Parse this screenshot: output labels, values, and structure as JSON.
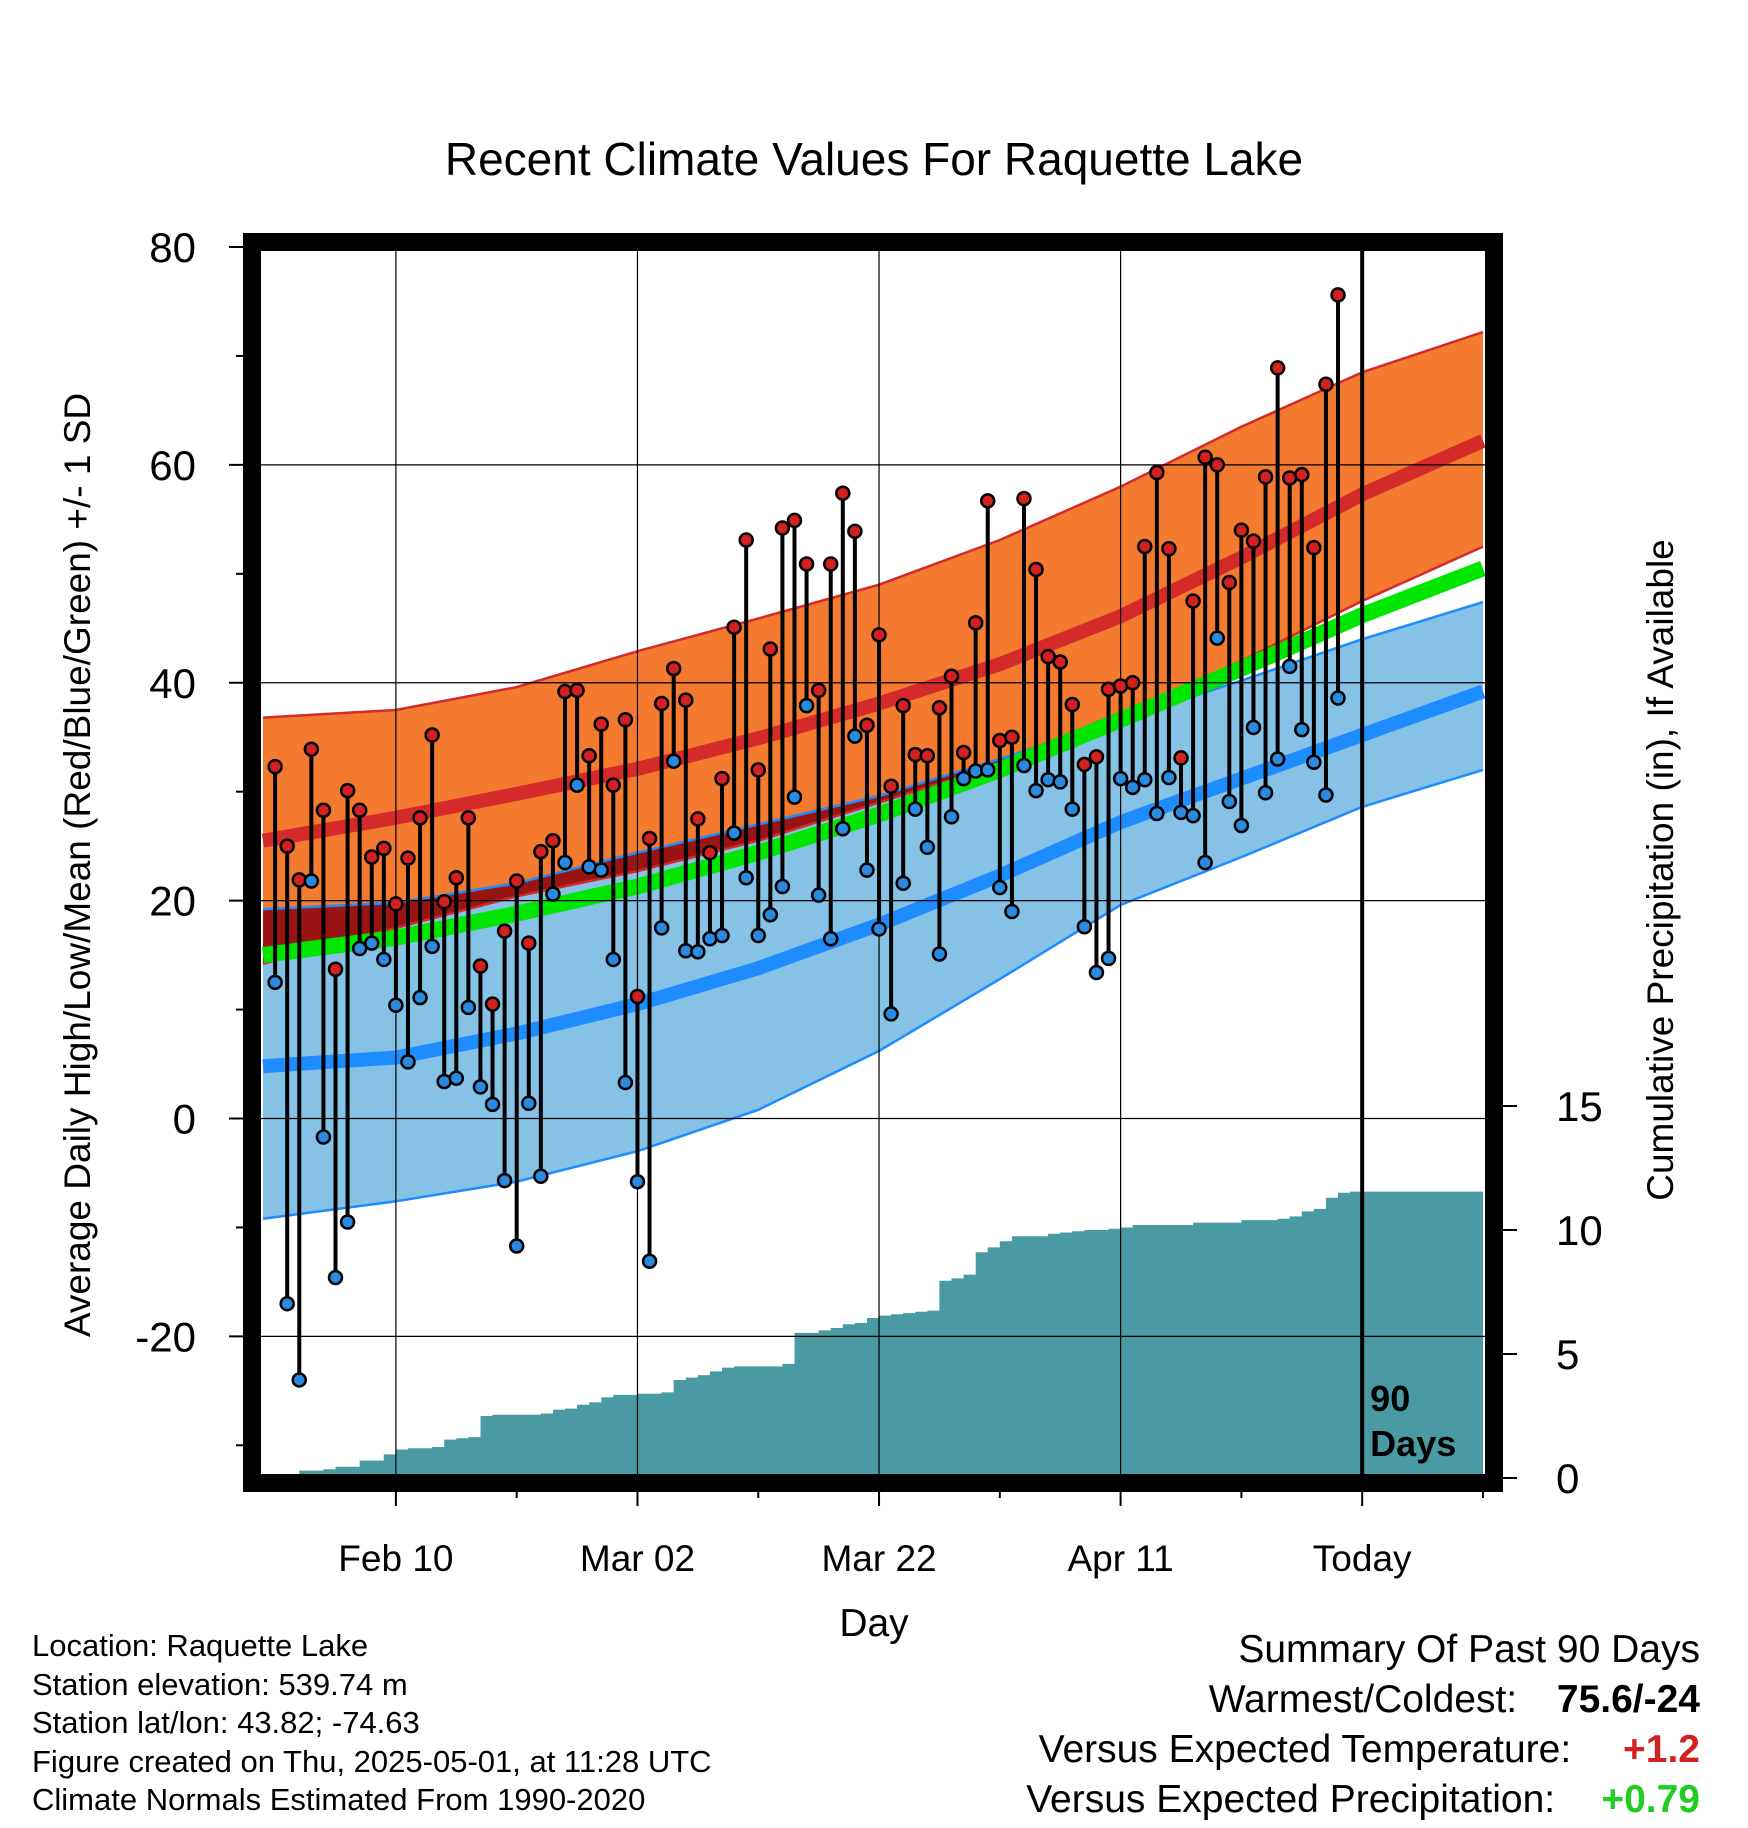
{
  "chart_data": {
    "type": "line",
    "title": "Recent Climate Values For Raquette Lake",
    "xlabel": "Day",
    "ylabel": "Average Daily High/Low/Mean (Red/Blue/Green) +/- 1 SD",
    "y2label": "Cumulative Precipitation (in), If Available",
    "xlim": [
      -11.5,
      90.5
    ],
    "ylim": [
      -33,
      80
    ],
    "y2lim": [
      0,
      20
    ],
    "x_ticks": [
      {
        "x": 0,
        "label": "Feb 10"
      },
      {
        "x": 20,
        "label": "Mar 02"
      },
      {
        "x": 40,
        "label": "Mar 22"
      },
      {
        "x": 60,
        "label": "Apr 11"
      },
      {
        "x": 80,
        "label": "Today"
      }
    ],
    "y_ticks": [
      80,
      60,
      40,
      20,
      0,
      -20
    ],
    "y_tick_labels": [
      "80",
      "60",
      "40",
      "20",
      "0",
      "-20"
    ],
    "y2_ticks": [
      15,
      10,
      5,
      0
    ],
    "y2_tick_labels": [
      "15",
      "10",
      "5",
      "0"
    ],
    "today_x": 80,
    "today_label": "90 Days",
    "grid": true,
    "colors": {
      "high_band": "#f37a2e",
      "high_mean": "#d42a2a",
      "overlap_band": "#9b1414",
      "low_band": "#86c1e6",
      "low_mean": "#1d8cff",
      "mean_line": "#00e600",
      "precip": "#4a9aa4",
      "high_point": "#d32020",
      "low_point": "#2a8ae0",
      "warm_value": "#d42020",
      "precip_value": "#22cc22"
    },
    "normal_high_mean": {
      "x": [
        -11,
        0,
        10,
        20,
        30,
        40,
        50,
        60,
        70,
        80,
        90
      ],
      "values": [
        25.5,
        27.6,
        29.8,
        32.1,
        34.9,
        38.1,
        41.7,
        46.1,
        51.5,
        57.3,
        62.2
      ]
    },
    "normal_high_upper": {
      "x": [
        -11,
        0,
        10,
        20,
        30,
        40,
        50,
        60,
        70,
        80,
        90
      ],
      "values": [
        36.8,
        37.5,
        39.6,
        42.9,
        45.9,
        49.0,
        53.1,
        58.0,
        63.5,
        68.5,
        72.2
      ]
    },
    "normal_high_lower": {
      "x": [
        -11,
        0,
        10,
        20,
        30,
        40,
        50,
        60,
        70,
        80,
        90
      ],
      "values": [
        14.2,
        17.5,
        20.4,
        22.7,
        25.5,
        29.0,
        32.5,
        37.0,
        42.0,
        47.5,
        52.5
      ]
    },
    "normal_low_mean": {
      "x": [
        -11,
        0,
        10,
        20,
        30,
        40,
        50,
        60,
        70,
        80,
        90
      ],
      "values": [
        4.8,
        5.6,
        7.8,
        10.5,
        13.8,
        17.8,
        22.3,
        27.2,
        31.2,
        35.2,
        39.2
      ]
    },
    "normal_low_upper": {
      "x": [
        -11,
        0,
        10,
        20,
        30,
        40,
        50,
        60,
        70,
        80,
        90
      ],
      "values": [
        19.2,
        19.8,
        21.6,
        24.4,
        27.0,
        29.6,
        33.0,
        36.6,
        40.2,
        44.0,
        47.4
      ]
    },
    "normal_low_lower": {
      "x": [
        -11,
        0,
        10,
        20,
        30,
        40,
        50,
        60,
        70,
        80,
        90
      ],
      "values": [
        -9.2,
        -7.6,
        -5.8,
        -3.0,
        0.8,
        6.2,
        12.8,
        19.6,
        24.0,
        28.6,
        32.0
      ]
    },
    "normal_mean": {
      "x": [
        -11,
        0,
        10,
        20,
        30,
        40,
        50,
        60,
        70,
        80,
        90
      ],
      "values": [
        15.0,
        16.6,
        18.8,
        21.3,
        24.4,
        27.9,
        32.0,
        36.6,
        41.3,
        46.2,
        50.5
      ]
    },
    "daily_x": [
      -10,
      -9,
      -8,
      -7,
      -6,
      -5,
      -4,
      -3,
      -2,
      -1,
      0,
      1,
      2,
      3,
      4,
      5,
      6,
      7,
      8,
      9,
      10,
      11,
      12,
      13,
      14,
      15,
      16,
      17,
      18,
      19,
      20,
      21,
      22,
      23,
      24,
      25,
      26,
      27,
      28,
      29,
      30,
      31,
      32,
      33,
      34,
      35,
      36,
      37,
      38,
      39,
      40,
      41,
      42,
      43,
      44,
      45,
      46,
      47,
      48,
      49,
      50,
      51,
      52,
      53,
      54,
      55,
      56,
      57,
      58,
      59,
      60,
      61,
      62,
      63,
      64,
      65,
      66,
      67,
      68,
      69,
      70,
      71,
      72,
      73,
      74,
      75,
      76,
      77,
      78
    ],
    "daily_high": [
      32.3,
      25.0,
      21.9,
      33.9,
      28.3,
      13.7,
      30.1,
      28.3,
      24.0,
      24.8,
      19.7,
      23.9,
      27.6,
      35.2,
      19.9,
      22.1,
      27.6,
      14.0,
      10.5,
      17.2,
      21.8,
      16.1,
      24.5,
      25.5,
      39.2,
      39.3,
      33.3,
      36.2,
      30.6,
      36.6,
      11.2,
      25.7,
      38.1,
      41.3,
      38.4,
      27.5,
      24.4,
      31.2,
      45.1,
      53.1,
      32.0,
      43.1,
      54.2,
      54.9,
      50.9,
      39.3,
      50.9,
      57.4,
      53.9,
      36.1,
      44.4,
      30.5,
      37.9,
      33.4,
      33.3,
      37.7,
      40.6,
      33.6,
      45.5,
      56.7,
      34.7,
      35.0,
      56.9,
      50.4,
      42.4,
      41.9,
      38.0,
      32.5,
      33.2,
      39.4,
      39.7,
      40.0,
      52.5,
      59.3,
      52.3,
      33.1,
      47.5,
      60.7,
      60.0,
      49.2,
      54.0,
      53.0,
      58.9,
      68.9,
      58.8,
      59.1,
      52.4,
      67.4,
      75.6
    ],
    "daily_low": [
      12.5,
      -17.0,
      -24.0,
      21.8,
      -1.7,
      -14.6,
      -9.5,
      15.6,
      16.1,
      14.6,
      10.4,
      5.2,
      11.1,
      15.8,
      3.4,
      3.7,
      10.2,
      2.9,
      1.3,
      -5.7,
      -11.7,
      1.4,
      -5.3,
      20.6,
      23.5,
      30.6,
      23.1,
      22.8,
      14.6,
      3.3,
      -5.8,
      -13.1,
      17.5,
      32.8,
      15.4,
      15.3,
      16.5,
      16.8,
      26.2,
      22.1,
      16.8,
      18.7,
      21.3,
      29.5,
      37.9,
      20.5,
      16.5,
      26.6,
      35.1,
      22.8,
      17.4,
      9.6,
      21.6,
      28.4,
      24.9,
      15.1,
      27.7,
      31.2,
      31.9,
      32.0,
      21.2,
      19.0,
      32.4,
      30.1,
      31.1,
      30.9,
      28.4,
      17.6,
      13.4,
      14.7,
      31.2,
      30.4,
      31.1,
      28.0,
      31.3,
      28.1,
      27.8,
      23.5,
      44.1,
      29.1,
      26.9,
      35.9,
      29.9,
      33.0,
      41.5,
      35.7,
      32.7,
      29.7,
      38.6
    ],
    "precip": {
      "x": [
        -8,
        -6,
        -5,
        -3,
        -1,
        0,
        1,
        2,
        3,
        4,
        5,
        6,
        7,
        8,
        9,
        10,
        11,
        12,
        13,
        14,
        15,
        16,
        17,
        18,
        19,
        20,
        21,
        22,
        23,
        24,
        25,
        26,
        27,
        28,
        29,
        30,
        31,
        32,
        33,
        34,
        35,
        36,
        37,
        38,
        39,
        40,
        41,
        42,
        43,
        44,
        45,
        46,
        47,
        48,
        49,
        50,
        51,
        52,
        53,
        54,
        55,
        56,
        57,
        58,
        59,
        60,
        61,
        62,
        63,
        64,
        65,
        66,
        67,
        68,
        69,
        70,
        71,
        72,
        73,
        74,
        75,
        76,
        77,
        78,
        79,
        80,
        90
      ],
      "values": [
        0.3,
        0.35,
        0.45,
        0.7,
        0.95,
        1.15,
        1.2,
        1.2,
        1.25,
        1.55,
        1.6,
        1.65,
        2.5,
        2.55,
        2.55,
        2.55,
        2.55,
        2.6,
        2.75,
        2.8,
        2.95,
        3.05,
        3.25,
        3.35,
        3.35,
        3.4,
        3.4,
        3.45,
        3.95,
        4.05,
        4.15,
        4.3,
        4.45,
        4.5,
        4.5,
        4.5,
        4.5,
        4.6,
        5.85,
        5.85,
        5.95,
        6.05,
        6.2,
        6.25,
        6.45,
        6.55,
        6.6,
        6.65,
        6.7,
        6.75,
        7.95,
        8.05,
        8.2,
        9.1,
        9.3,
        9.55,
        9.75,
        9.75,
        9.75,
        9.85,
        9.9,
        9.95,
        10.0,
        10.0,
        10.05,
        10.1,
        10.2,
        10.2,
        10.2,
        10.2,
        10.2,
        10.3,
        10.3,
        10.3,
        10.3,
        10.4,
        10.4,
        10.4,
        10.45,
        10.55,
        10.75,
        10.85,
        11.3,
        11.5,
        11.55,
        11.55,
        11.55
      ]
    }
  },
  "footer": {
    "location": "Location: Raquette Lake",
    "elevation": "Station elevation: 539.74 m",
    "latlon": "Station lat/lon: 43.82; -74.63",
    "created": "Figure created on Thu, 2025-05-01, at 11:28 UTC",
    "normals": "Climate Normals Estimated From 1990-2020"
  },
  "summary": {
    "heading": "Summary Of Past 90 Days",
    "warmest_label": "Warmest/Coldest:",
    "warmest_value": "75.6/-24",
    "temp_label": "Versus Expected Temperature:",
    "temp_value": "+1.2",
    "precip_label": "Versus Expected Precipitation:",
    "precip_value": "+0.79"
  }
}
